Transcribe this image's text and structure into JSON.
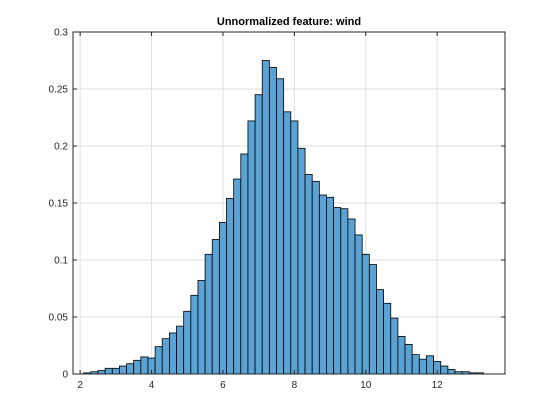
{
  "chart_data": {
    "type": "bar",
    "title": "Unnormalized feature: wind",
    "xlabel": "",
    "ylabel": "",
    "xlim": [
      1.8,
      13.9
    ],
    "ylim": [
      0,
      0.3
    ],
    "xticks": [
      2,
      4,
      6,
      8,
      10,
      12
    ],
    "yticks": [
      0,
      0.05,
      0.1,
      0.15,
      0.2,
      0.25,
      0.3
    ],
    "grid": true,
    "bar_color": "#5ba3d5",
    "edge_color": "#000000",
    "bin_width": 0.2,
    "bin_left_edges": [
      2.1,
      2.3,
      2.5,
      2.7,
      2.9,
      3.1,
      3.3,
      3.5,
      3.7,
      3.9,
      4.1,
      4.3,
      4.5,
      4.7,
      4.9,
      5.1,
      5.3,
      5.5,
      5.7,
      5.9,
      6.1,
      6.3,
      6.5,
      6.7,
      6.9,
      7.1,
      7.3,
      7.5,
      7.7,
      7.9,
      8.1,
      8.3,
      8.5,
      8.7,
      8.9,
      9.1,
      9.3,
      9.5,
      9.7,
      9.9,
      10.1,
      10.3,
      10.5,
      10.7,
      10.9,
      11.1,
      11.3,
      11.5,
      11.7,
      11.9,
      12.1,
      12.3,
      12.5,
      12.7,
      12.9,
      13.1
    ],
    "values": [
      0.001,
      0.002,
      0.003,
      0.005,
      0.005,
      0.007,
      0.009,
      0.012,
      0.015,
      0.014,
      0.024,
      0.031,
      0.036,
      0.042,
      0.055,
      0.069,
      0.082,
      0.105,
      0.118,
      0.133,
      0.154,
      0.171,
      0.193,
      0.222,
      0.245,
      0.275,
      0.269,
      0.259,
      0.23,
      0.222,
      0.198,
      0.175,
      0.169,
      0.157,
      0.155,
      0.146,
      0.145,
      0.136,
      0.122,
      0.105,
      0.096,
      0.074,
      0.062,
      0.049,
      0.033,
      0.026,
      0.017,
      0.013,
      0.016,
      0.011,
      0.007,
      0.004,
      0.002,
      0.002,
      0.001,
      0.001
    ]
  }
}
